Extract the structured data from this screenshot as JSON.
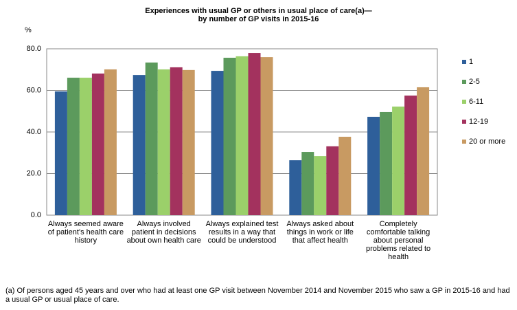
{
  "chart_data": {
    "type": "bar",
    "title": [
      "Experiences with usual GP or others in usual place of care(a)—",
      "by number of GP visits in 2015-16"
    ],
    "y_label": "%",
    "footnote": "(a) Of persons aged 45 years and over who had at least one GP visit between November 2014 and November 2015 who saw a GP in 2015-16 and had a usual GP or usual place of care.",
    "categories": [
      "Always seemed aware of patient's health care history",
      "Always involved patient in decisions about own health care",
      "Always explained test results in a way that could be understood",
      "Always asked about things in work or life that affect health",
      "Completely comfortable talking about personal problems related to health"
    ],
    "series": [
      {
        "name": "1",
        "color": "#2e5f9a",
        "values": [
          59.5,
          67.4,
          69.4,
          26.4,
          47.3
        ]
      },
      {
        "name": "2-5",
        "color": "#5c9a5c",
        "values": [
          66.1,
          73.4,
          75.7,
          30.4,
          49.6
        ]
      },
      {
        "name": "6-11",
        "color": "#9bd06a",
        "values": [
          66.1,
          70.1,
          76.4,
          28.4,
          52.2
        ]
      },
      {
        "name": "12-19",
        "color": "#a3325e",
        "values": [
          68.1,
          71.1,
          78.0,
          33.1,
          57.5
        ]
      },
      {
        "name": "20 or more",
        "color": "#c89a62",
        "values": [
          70.1,
          69.8,
          76.0,
          37.7,
          61.5
        ]
      }
    ],
    "ylim": [
      0,
      80
    ],
    "yticks": [
      {
        "value": 0,
        "label": "0.0"
      },
      {
        "value": 20,
        "label": "20.0"
      },
      {
        "value": 40,
        "label": "40.0"
      },
      {
        "value": 60,
        "label": "60.0"
      },
      {
        "value": 80,
        "label": "80.0"
      }
    ],
    "grid": true,
    "legend": "right"
  }
}
